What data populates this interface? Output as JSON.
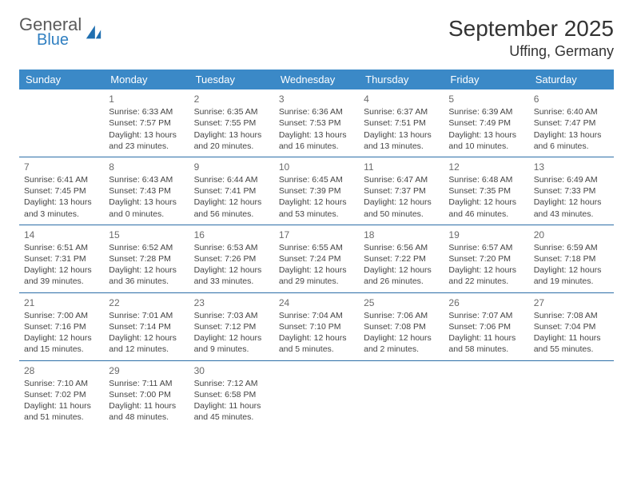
{
  "logo": {
    "word1": "General",
    "word2": "Blue",
    "word1_color": "#5a5a5a",
    "word2_color": "#2f7fc1",
    "icon_color": "#1f6fb0"
  },
  "title": "September 2025",
  "location": "Uffing, Germany",
  "colors": {
    "header_bg": "#3b89c7",
    "header_text": "#ffffff",
    "row_divider": "#2d6fa8",
    "body_text": "#444444",
    "daynum_text": "#6a6a6a",
    "page_bg": "#ffffff"
  },
  "fonts": {
    "title_size_pt": 21,
    "location_size_pt": 14,
    "header_size_pt": 10,
    "cell_size_pt": 8,
    "daynum_size_pt": 9
  },
  "weekdays": [
    "Sunday",
    "Monday",
    "Tuesday",
    "Wednesday",
    "Thursday",
    "Friday",
    "Saturday"
  ],
  "weeks": [
    [
      null,
      {
        "n": "1",
        "sr": "Sunrise: 6:33 AM",
        "ss": "Sunset: 7:57 PM",
        "dl": "Daylight: 13 hours and 23 minutes."
      },
      {
        "n": "2",
        "sr": "Sunrise: 6:35 AM",
        "ss": "Sunset: 7:55 PM",
        "dl": "Daylight: 13 hours and 20 minutes."
      },
      {
        "n": "3",
        "sr": "Sunrise: 6:36 AM",
        "ss": "Sunset: 7:53 PM",
        "dl": "Daylight: 13 hours and 16 minutes."
      },
      {
        "n": "4",
        "sr": "Sunrise: 6:37 AM",
        "ss": "Sunset: 7:51 PM",
        "dl": "Daylight: 13 hours and 13 minutes."
      },
      {
        "n": "5",
        "sr": "Sunrise: 6:39 AM",
        "ss": "Sunset: 7:49 PM",
        "dl": "Daylight: 13 hours and 10 minutes."
      },
      {
        "n": "6",
        "sr": "Sunrise: 6:40 AM",
        "ss": "Sunset: 7:47 PM",
        "dl": "Daylight: 13 hours and 6 minutes."
      }
    ],
    [
      {
        "n": "7",
        "sr": "Sunrise: 6:41 AM",
        "ss": "Sunset: 7:45 PM",
        "dl": "Daylight: 13 hours and 3 minutes."
      },
      {
        "n": "8",
        "sr": "Sunrise: 6:43 AM",
        "ss": "Sunset: 7:43 PM",
        "dl": "Daylight: 13 hours and 0 minutes."
      },
      {
        "n": "9",
        "sr": "Sunrise: 6:44 AM",
        "ss": "Sunset: 7:41 PM",
        "dl": "Daylight: 12 hours and 56 minutes."
      },
      {
        "n": "10",
        "sr": "Sunrise: 6:45 AM",
        "ss": "Sunset: 7:39 PM",
        "dl": "Daylight: 12 hours and 53 minutes."
      },
      {
        "n": "11",
        "sr": "Sunrise: 6:47 AM",
        "ss": "Sunset: 7:37 PM",
        "dl": "Daylight: 12 hours and 50 minutes."
      },
      {
        "n": "12",
        "sr": "Sunrise: 6:48 AM",
        "ss": "Sunset: 7:35 PM",
        "dl": "Daylight: 12 hours and 46 minutes."
      },
      {
        "n": "13",
        "sr": "Sunrise: 6:49 AM",
        "ss": "Sunset: 7:33 PM",
        "dl": "Daylight: 12 hours and 43 minutes."
      }
    ],
    [
      {
        "n": "14",
        "sr": "Sunrise: 6:51 AM",
        "ss": "Sunset: 7:31 PM",
        "dl": "Daylight: 12 hours and 39 minutes."
      },
      {
        "n": "15",
        "sr": "Sunrise: 6:52 AM",
        "ss": "Sunset: 7:28 PM",
        "dl": "Daylight: 12 hours and 36 minutes."
      },
      {
        "n": "16",
        "sr": "Sunrise: 6:53 AM",
        "ss": "Sunset: 7:26 PM",
        "dl": "Daylight: 12 hours and 33 minutes."
      },
      {
        "n": "17",
        "sr": "Sunrise: 6:55 AM",
        "ss": "Sunset: 7:24 PM",
        "dl": "Daylight: 12 hours and 29 minutes."
      },
      {
        "n": "18",
        "sr": "Sunrise: 6:56 AM",
        "ss": "Sunset: 7:22 PM",
        "dl": "Daylight: 12 hours and 26 minutes."
      },
      {
        "n": "19",
        "sr": "Sunrise: 6:57 AM",
        "ss": "Sunset: 7:20 PM",
        "dl": "Daylight: 12 hours and 22 minutes."
      },
      {
        "n": "20",
        "sr": "Sunrise: 6:59 AM",
        "ss": "Sunset: 7:18 PM",
        "dl": "Daylight: 12 hours and 19 minutes."
      }
    ],
    [
      {
        "n": "21",
        "sr": "Sunrise: 7:00 AM",
        "ss": "Sunset: 7:16 PM",
        "dl": "Daylight: 12 hours and 15 minutes."
      },
      {
        "n": "22",
        "sr": "Sunrise: 7:01 AM",
        "ss": "Sunset: 7:14 PM",
        "dl": "Daylight: 12 hours and 12 minutes."
      },
      {
        "n": "23",
        "sr": "Sunrise: 7:03 AM",
        "ss": "Sunset: 7:12 PM",
        "dl": "Daylight: 12 hours and 9 minutes."
      },
      {
        "n": "24",
        "sr": "Sunrise: 7:04 AM",
        "ss": "Sunset: 7:10 PM",
        "dl": "Daylight: 12 hours and 5 minutes."
      },
      {
        "n": "25",
        "sr": "Sunrise: 7:06 AM",
        "ss": "Sunset: 7:08 PM",
        "dl": "Daylight: 12 hours and 2 minutes."
      },
      {
        "n": "26",
        "sr": "Sunrise: 7:07 AM",
        "ss": "Sunset: 7:06 PM",
        "dl": "Daylight: 11 hours and 58 minutes."
      },
      {
        "n": "27",
        "sr": "Sunrise: 7:08 AM",
        "ss": "Sunset: 7:04 PM",
        "dl": "Daylight: 11 hours and 55 minutes."
      }
    ],
    [
      {
        "n": "28",
        "sr": "Sunrise: 7:10 AM",
        "ss": "Sunset: 7:02 PM",
        "dl": "Daylight: 11 hours and 51 minutes."
      },
      {
        "n": "29",
        "sr": "Sunrise: 7:11 AM",
        "ss": "Sunset: 7:00 PM",
        "dl": "Daylight: 11 hours and 48 minutes."
      },
      {
        "n": "30",
        "sr": "Sunrise: 7:12 AM",
        "ss": "Sunset: 6:58 PM",
        "dl": "Daylight: 11 hours and 45 minutes."
      },
      null,
      null,
      null,
      null
    ]
  ]
}
